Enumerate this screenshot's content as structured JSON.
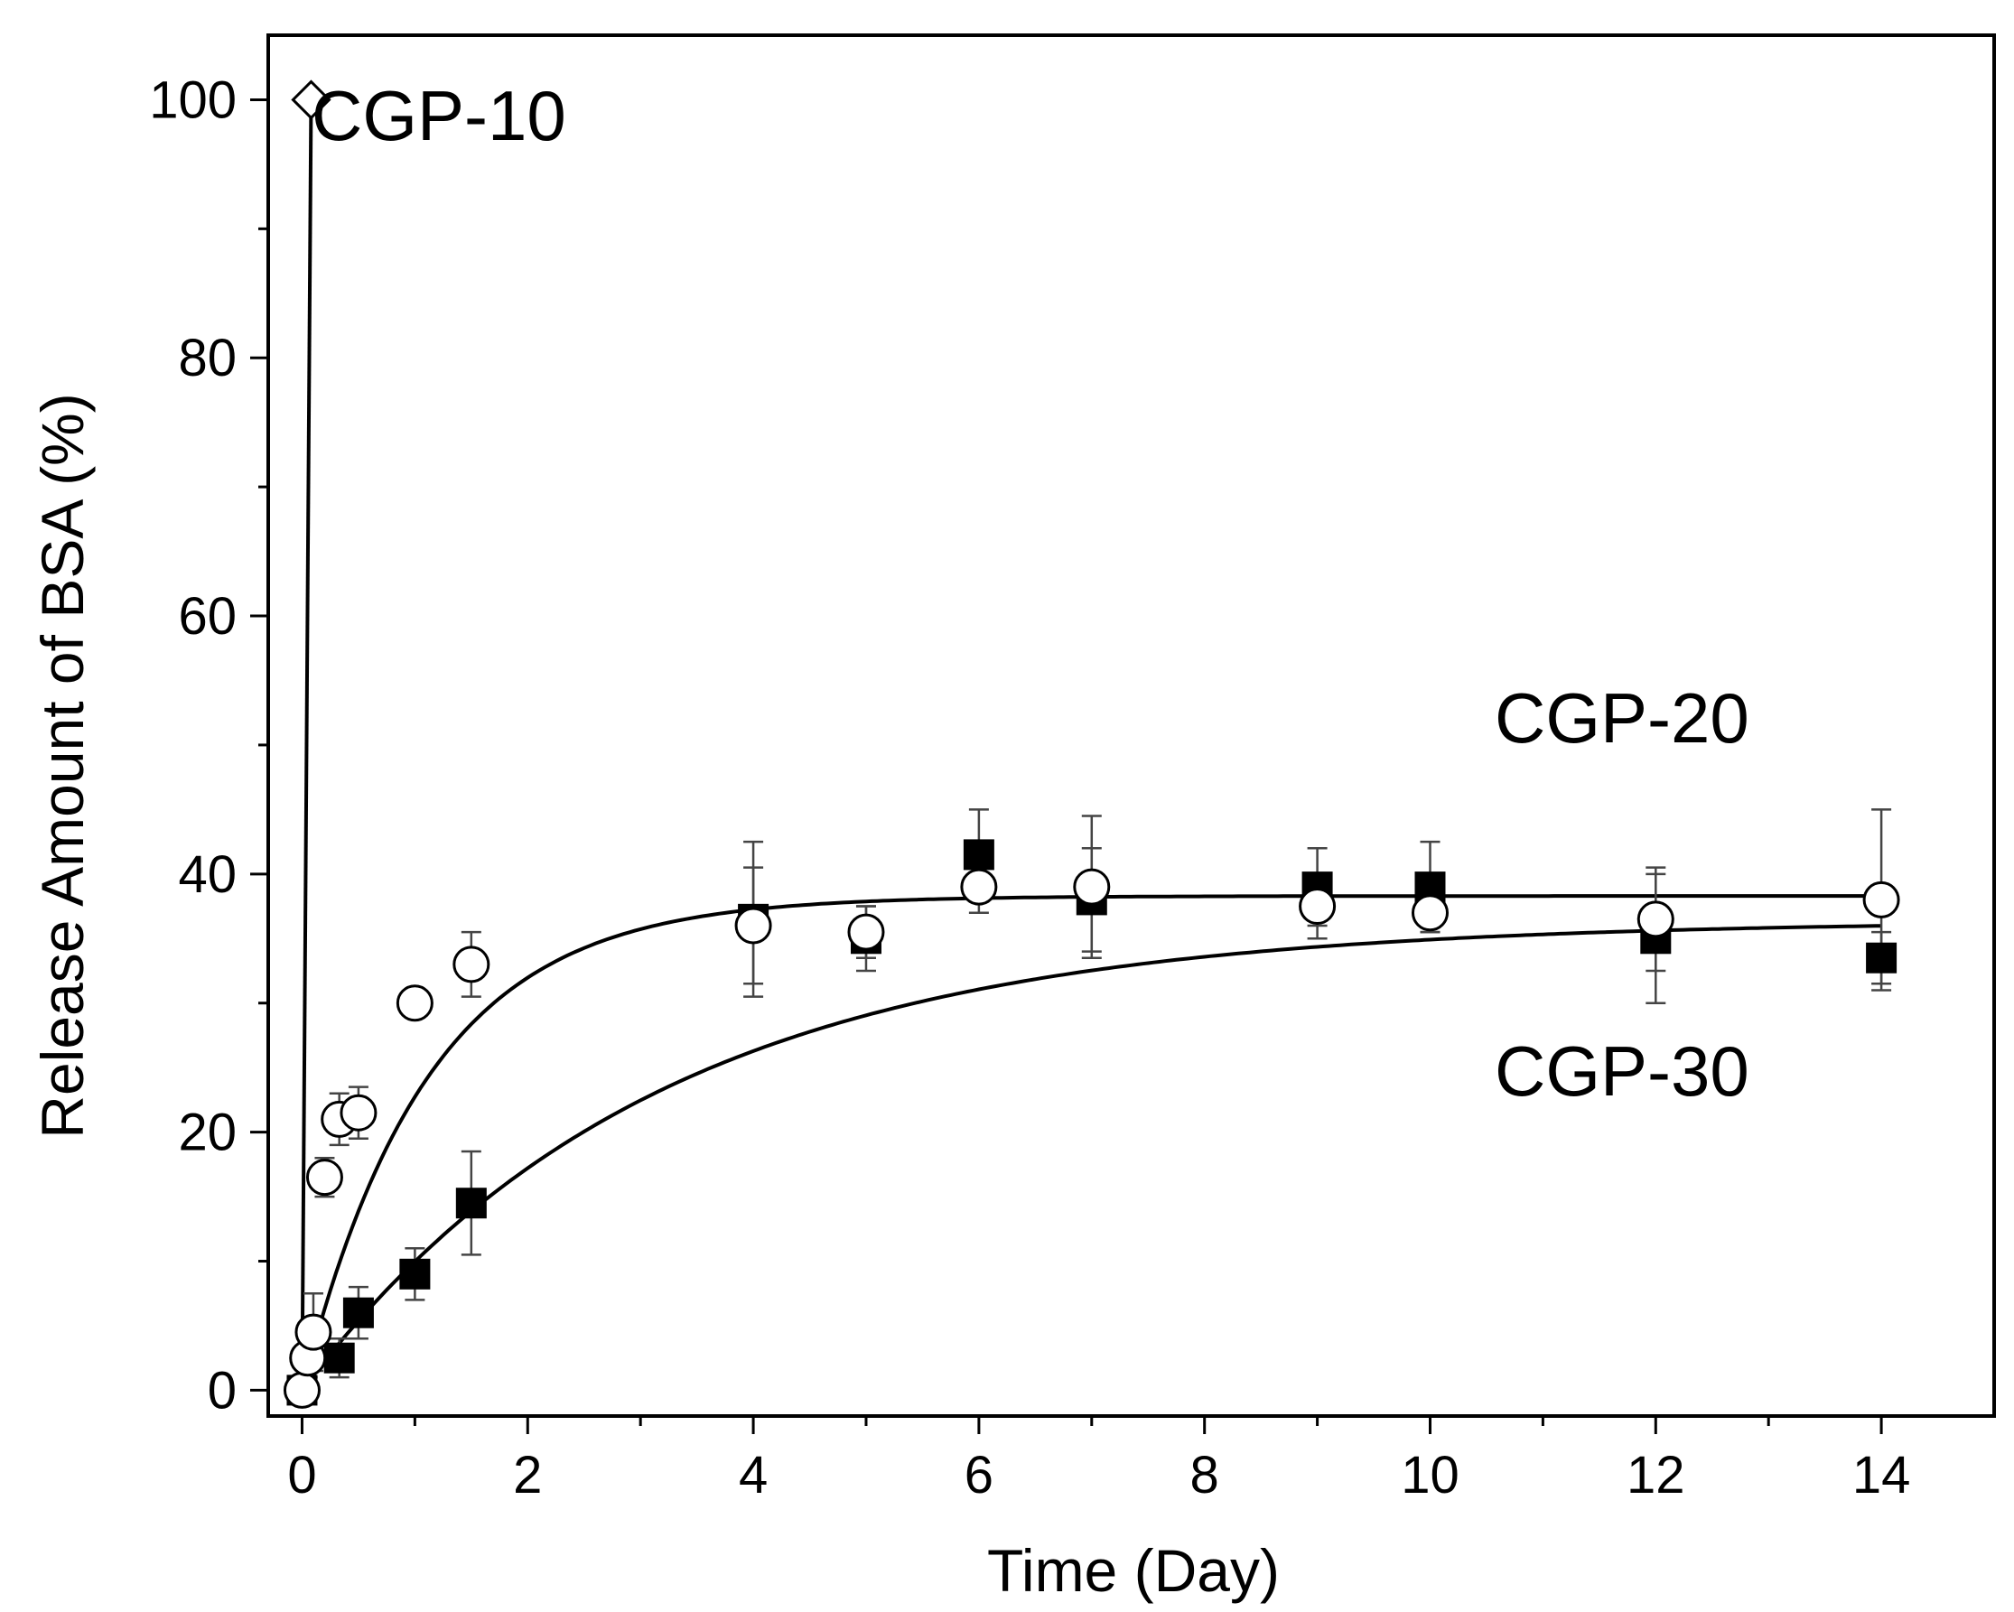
{
  "chart_data": {
    "type": "scatter",
    "title": "",
    "xlabel": "Time (Day)",
    "ylabel": "Release Amount of BSA (%)",
    "xlim": [
      -0.3,
      15.0
    ],
    "ylim": [
      -2,
      105
    ],
    "x_ticks": [
      0,
      2,
      4,
      6,
      8,
      10,
      12,
      14
    ],
    "y_ticks": [
      0,
      20,
      40,
      60,
      80,
      100
    ],
    "x_tick_labels": [
      "0",
      "2",
      "4",
      "6",
      "8",
      "10",
      "12",
      "14"
    ],
    "y_tick_labels": [
      "0",
      "20",
      "40",
      "60",
      "80",
      "100"
    ],
    "grid": false,
    "legend": "none",
    "series": [
      {
        "name": "CGP-10",
        "label": "CGP-10",
        "marker": "open-diamond",
        "points": [
          {
            "x": 0,
            "y": 0
          },
          {
            "x": 0.08,
            "y": 100
          }
        ],
        "fit": "line"
      },
      {
        "name": "CGP-20",
        "label": "CGP-20",
        "marker": "open-circle",
        "points": [
          {
            "x": 0,
            "y": 0,
            "err": 0
          },
          {
            "x": 0.05,
            "y": 2.5,
            "err": 1.5
          },
          {
            "x": 0.1,
            "y": 4.5,
            "err": 3
          },
          {
            "x": 0.2,
            "y": 16.5,
            "err": 1.5
          },
          {
            "x": 0.33,
            "y": 21,
            "err": 2
          },
          {
            "x": 0.5,
            "y": 21.5,
            "err": 2
          },
          {
            "x": 1,
            "y": 30,
            "err": 1
          },
          {
            "x": 1.5,
            "y": 33,
            "err": 2.5
          },
          {
            "x": 4,
            "y": 36,
            "err": 4.5
          },
          {
            "x": 5,
            "y": 35.5,
            "err": 2
          },
          {
            "x": 6,
            "y": 39,
            "err": 2
          },
          {
            "x": 7,
            "y": 39,
            "err": 5.5
          },
          {
            "x": 9,
            "y": 37.5,
            "err": 2.5
          },
          {
            "x": 10,
            "y": 37,
            "err": 1.5
          },
          {
            "x": 12,
            "y": 36.5,
            "err": 4
          },
          {
            "x": 14,
            "y": 38,
            "err": 7
          }
        ],
        "fit": {
          "A": 38.3,
          "k": 0.9
        }
      },
      {
        "name": "CGP-30",
        "label": "CGP-30",
        "marker": "filled-square",
        "points": [
          {
            "x": 0,
            "y": 0,
            "err": 0
          },
          {
            "x": 0.33,
            "y": 2.5,
            "err": 1.5
          },
          {
            "x": 0.5,
            "y": 6,
            "err": 2
          },
          {
            "x": 1,
            "y": 9,
            "err": 2
          },
          {
            "x": 1.5,
            "y": 14.5,
            "err": 4
          },
          {
            "x": 4,
            "y": 36.5,
            "err": 6
          },
          {
            "x": 5,
            "y": 35,
            "err": 2.5
          },
          {
            "x": 6,
            "y": 41.5,
            "err": 3.5
          },
          {
            "x": 7,
            "y": 38,
            "err": 4
          },
          {
            "x": 9,
            "y": 39,
            "err": 3
          },
          {
            "x": 10,
            "y": 39,
            "err": 3.5
          },
          {
            "x": 12,
            "y": 35,
            "err": 5
          },
          {
            "x": 14,
            "y": 33.5,
            "err": 2
          }
        ],
        "fit": {
          "A": 36.4,
          "k": 0.32
        }
      }
    ]
  }
}
